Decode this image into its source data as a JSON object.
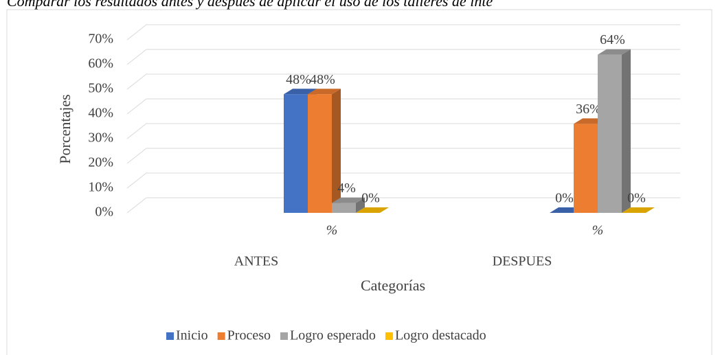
{
  "chart_data": {
    "type": "bar3d",
    "title": "Comparar los resultados antes y después de aplicar el uso de los talleres de inte",
    "ylabel": "Porcentajes",
    "xlabel": "Categorías",
    "categories": [
      "ANTES",
      "DESPUES"
    ],
    "subcategories": [
      "%",
      "%"
    ],
    "series": [
      {
        "name": "Inicio",
        "color": "#4472c4",
        "values": [
          48,
          0
        ],
        "value_labels": [
          "48%",
          "0%"
        ]
      },
      {
        "name": "Proceso",
        "color": "#ed7d31",
        "values": [
          48,
          36
        ],
        "value_labels": [
          "48%",
          "36%"
        ]
      },
      {
        "name": "Logro esperado",
        "color": "#a5a5a5",
        "values": [
          4,
          64
        ],
        "value_labels": [
          "4%",
          "64%"
        ]
      },
      {
        "name": "Logro destacado",
        "color": "#ffc000",
        "values": [
          0,
          0
        ],
        "value_labels": [
          "0%",
          "0%"
        ]
      }
    ],
    "ylim": [
      0,
      70
    ],
    "yticks": [
      {
        "value": 0,
        "label": "0%"
      },
      {
        "value": 10,
        "label": "10%"
      },
      {
        "value": 20,
        "label": "20%"
      },
      {
        "value": 30,
        "label": "30%"
      },
      {
        "value": 40,
        "label": "40%"
      },
      {
        "value": 50,
        "label": "50%"
      },
      {
        "value": 60,
        "label": "60%"
      },
      {
        "value": 70,
        "label": "70%"
      }
    ],
    "grid": true,
    "legend": "bottom"
  }
}
